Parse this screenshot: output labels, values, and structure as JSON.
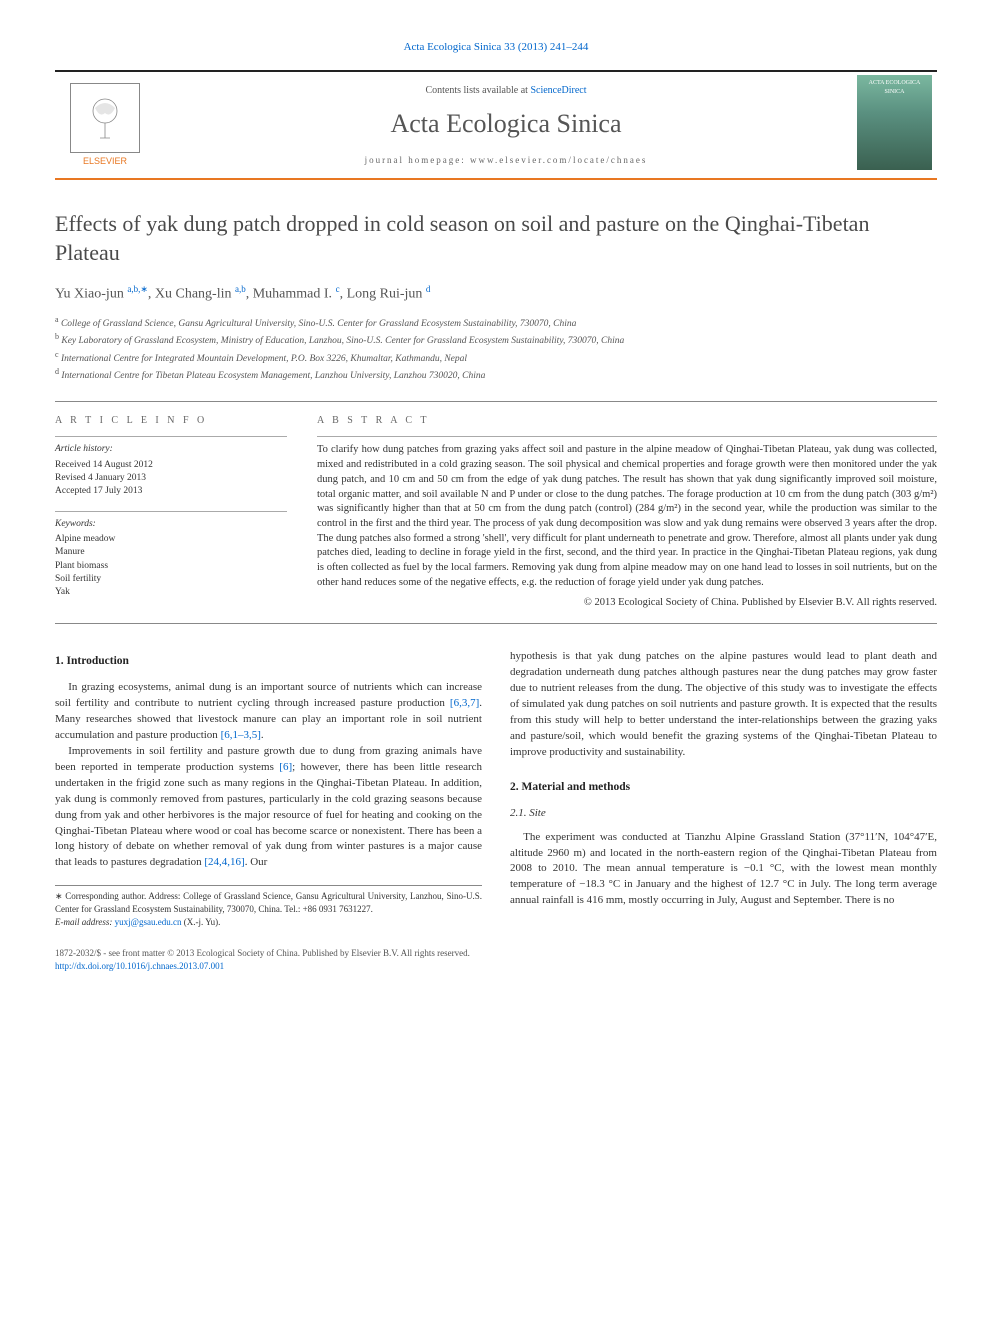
{
  "journal_ref": "Acta Ecologica Sinica 33 (2013) 241–244",
  "header": {
    "publisher": "ELSEVIER",
    "contents_prefix": "Contents lists available at ",
    "contents_link": "ScienceDirect",
    "journal_name": "Acta Ecologica Sinica",
    "homepage_label": "journal homepage: www.elsevier.com/locate/chnaes",
    "cover_text": "ACTA ECOLOGICA SINICA"
  },
  "title": "Effects of yak dung patch dropped in cold season on soil and pasture on the Qinghai-Tibetan Plateau",
  "authors_html": "Yu Xiao-jun <sup>a,b,∗</sup>, Xu Chang-lin <sup>a,b</sup>, Muhammad I. <sup>c</sup>, Long Rui-jun <sup>d</sup>",
  "affiliations": [
    "a College of Grassland Science, Gansu Agricultural University, Sino-U.S. Center for Grassland Ecosystem Sustainability, 730070, China",
    "b Key Laboratory of Grassland Ecosystem, Ministry of Education, Lanzhou, Sino-U.S. Center for Grassland Ecosystem Sustainability, 730070, China",
    "c International Centre for Integrated Mountain Development, P.O. Box 3226, Khumaltar, Kathmandu, Nepal",
    "d International Centre for Tibetan Plateau Ecosystem Management, Lanzhou University, Lanzhou 730020, China"
  ],
  "article_info": {
    "heading": "a r t i c l e   i n f o",
    "history_label": "Article history:",
    "history": [
      "Received 14 August 2012",
      "Revised 4 January 2013",
      "Accepted 17 July 2013"
    ],
    "keywords_label": "Keywords:",
    "keywords": [
      "Alpine meadow",
      "Manure",
      "Plant biomass",
      "Soil fertility",
      "Yak"
    ]
  },
  "abstract": {
    "heading": "a b s t r a c t",
    "text": "To clarify how dung patches from grazing yaks affect soil and pasture in the alpine meadow of Qinghai-Tibetan Plateau, yak dung was collected, mixed and redistributed in a cold grazing season. The soil physical and chemical properties and forage growth were then monitored under the yak dung patch, and 10 cm and 50 cm from the edge of yak dung patches. The result has shown that yak dung significantly improved soil moisture, total organic matter, and soil available N and P under or close to the dung patches. The forage production at 10 cm from the dung patch (303 g/m²) was significantly higher than that at 50 cm from the dung patch (control) (284 g/m²) in the second year, while the production was similar to the control in the first and the third year. The process of yak dung decomposition was slow and yak dung remains were observed 3 years after the drop. The dung patches also formed a strong 'shell', very difficult for plant underneath to penetrate and grow. Therefore, almost all plants under yak dung patches died, leading to decline in forage yield in the first, second, and the third year. In practice in the Qinghai-Tibetan Plateau regions, yak dung is often collected as fuel by the local farmers. Removing yak dung from alpine meadow may on one hand lead to losses in soil nutrients, but on the other hand reduces some of the negative effects, e.g. the reduction of forage yield under yak dung patches.",
    "copyright": "© 2013 Ecological Society of China. Published by Elsevier B.V. All rights reserved."
  },
  "sections": {
    "s1": {
      "heading": "1. Introduction",
      "p1": "In grazing ecosystems, animal dung is an important source of nutrients which can increase soil fertility and contribute to nutrient cycling through increased pasture production [6,3,7]. Many researches showed that livestock manure can play an important role in soil nutrient accumulation and pasture production [6,1–3,5].",
      "p2": "Improvements in soil fertility and pasture growth due to dung from grazing animals have been reported in temperate production systems [6]; however, there has been little research undertaken in the frigid zone such as many regions in the Qinghai-Tibetan Plateau. In addition, yak dung is commonly removed from pastures, particularly in the cold grazing seasons because dung from yak and other herbivores is the major resource of fuel for heating and cooking on the Qinghai-Tibetan Plateau where wood or coal has become scarce or nonexistent. There has been a long history of debate on whether removal of yak dung from winter pastures is a major cause that leads to pastures degradation [24,4,16]. Our",
      "p2b": "hypothesis is that yak dung patches on the alpine pastures would lead to plant death and degradation underneath dung patches although pastures near the dung patches may grow faster due to nutrient releases from the dung. The objective of this study was to investigate the effects of simulated yak dung patches on soil nutrients and pasture growth. It is expected that the results from this study will help to better understand the inter-relationships between the grazing yaks and pasture/soil, which would benefit the grazing systems of the Qinghai-Tibetan Plateau to improve productivity and sustainability."
    },
    "s2": {
      "heading": "2. Material and methods",
      "s21_heading": "2.1. Site",
      "s21_p1": "The experiment was conducted at Tianzhu Alpine Grassland Station (37°11′N, 104°47′E, altitude 2960 m) and located in the north-eastern region of the Qinghai-Tibetan Plateau from 2008 to 2010. The mean annual temperature is −0.1 °C, with the lowest mean monthly temperature of −18.3 °C in January and the highest of 12.7 °C in July. The long term average annual rainfall is 416 mm, mostly occurring in July, August and September. There is no"
    }
  },
  "footnote": {
    "line1": "∗ Corresponding author. Address: College of Grassland Science, Gansu Agricultural University, Lanzhou, Sino-U.S. Center for Grassland Ecosystem Sustainability, 730070, China. Tel.: +86 0931 7631227.",
    "email_label": "E-mail address: ",
    "email": "yuxj@gsau.edu.cn",
    "email_suffix": " (X.-j. Yu)."
  },
  "footer": {
    "line1": "1872-2032/$ - see front matter © 2013 Ecological Society of China. Published by Elsevier B.V. All rights reserved.",
    "doi": "http://dx.doi.org/10.1016/j.chnaes.2013.07.001"
  },
  "colors": {
    "accent_orange": "#e87722",
    "link_blue": "#0066cc",
    "text": "#333333",
    "heading_gray": "#4a4a4a"
  }
}
